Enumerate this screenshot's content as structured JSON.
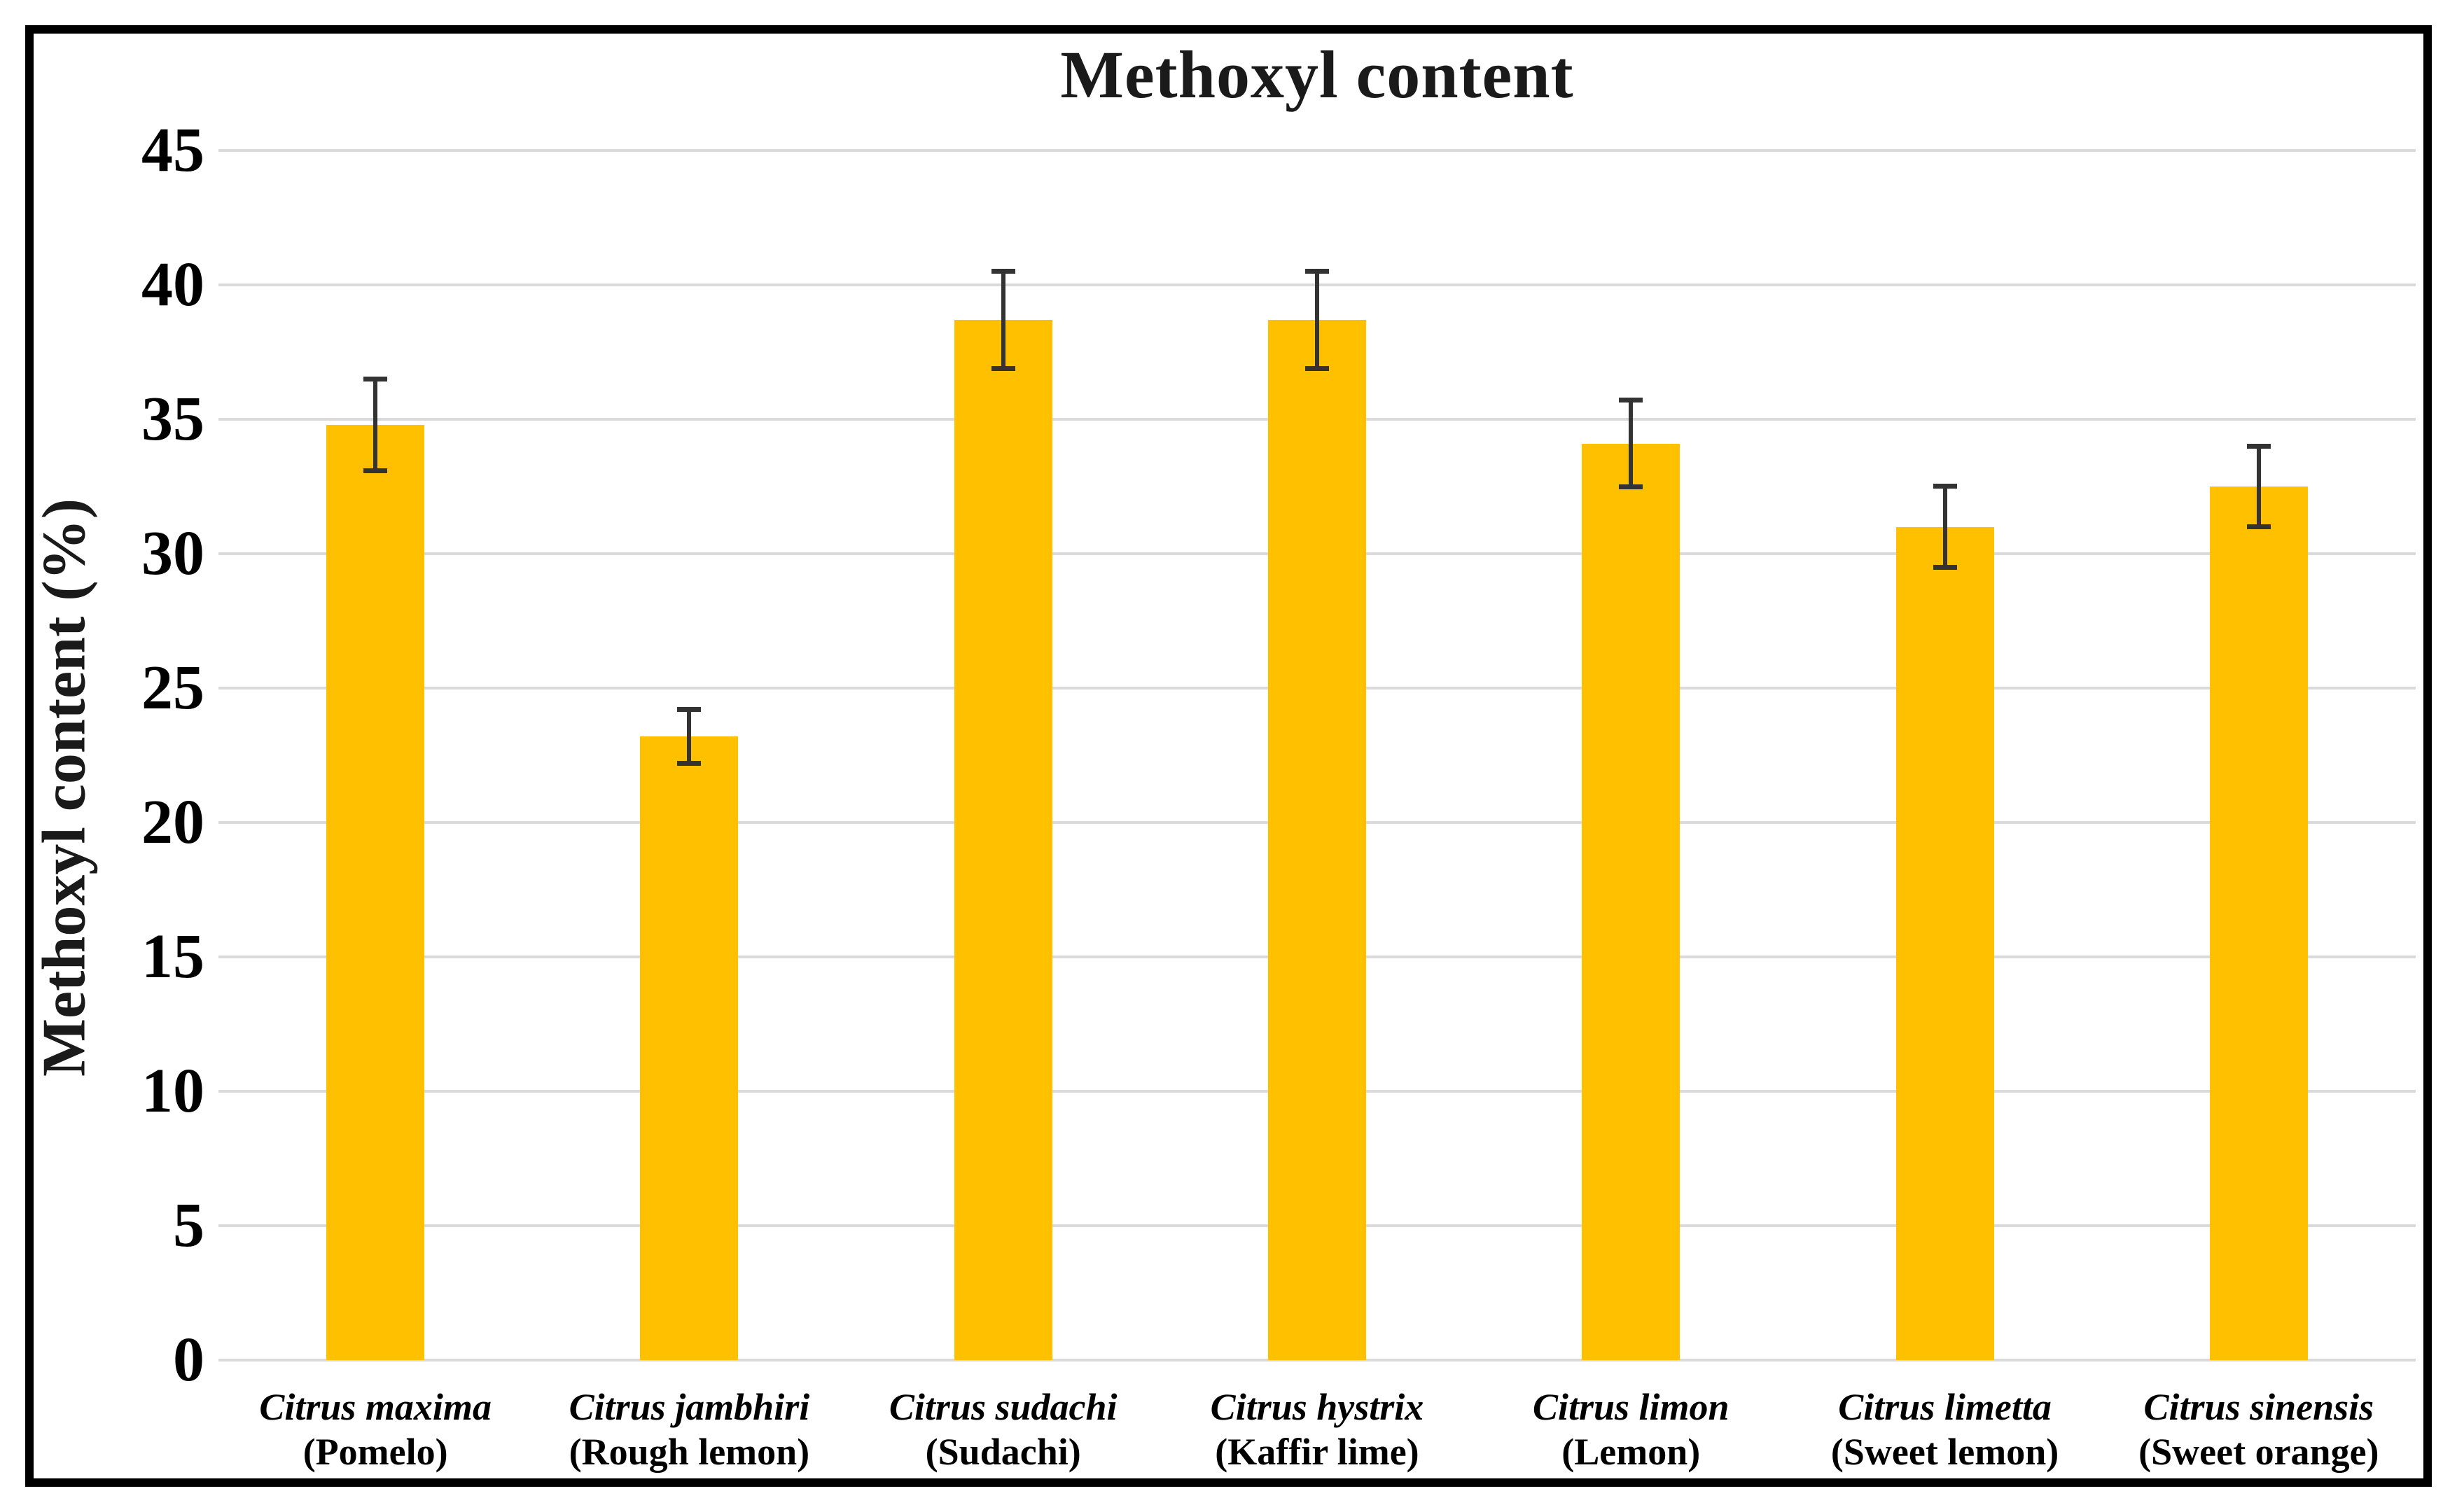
{
  "chart_data": {
    "type": "bar",
    "title": "Methoxyl content",
    "ylabel": "Methoxyl content (%)",
    "xlabel": "",
    "ylim": [
      0,
      45
    ],
    "yticks": [
      0,
      5,
      10,
      15,
      20,
      25,
      30,
      35,
      40,
      45
    ],
    "grid": "horizontal",
    "gridline_color": "#dadada",
    "legend": "none",
    "bar_color": "#FFC000",
    "error_bar_color": "#333333",
    "categories": [
      {
        "species": "Citrus maxima",
        "common_name": "(Pomelo)"
      },
      {
        "species": "Citrus jambhiri",
        "common_name": "(Rough lemon)"
      },
      {
        "species": "Citrus sudachi",
        "common_name": "(Sudachi)"
      },
      {
        "species": "Citrus hystrix",
        "common_name": "(Kaffir lime)"
      },
      {
        "species": "Citrus limon",
        "common_name": "(Lemon)"
      },
      {
        "species": "Citrus limetta",
        "common_name": "(Sweet lemon)"
      },
      {
        "species": "Citrus sinensis",
        "common_name": "(Sweet orange)"
      }
    ],
    "values": [
      34.8,
      23.2,
      38.7,
      38.7,
      34.1,
      31.0,
      32.5
    ],
    "error_bars": [
      1.8,
      1.1,
      1.9,
      1.9,
      1.7,
      1.6,
      1.6
    ]
  }
}
